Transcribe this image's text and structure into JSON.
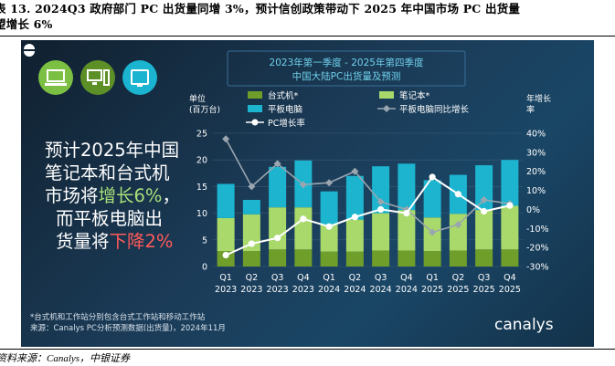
{
  "caption": {
    "line1": "表 13. 2024Q3 政府部门 PC 出货量同增 3%，预计信创政策带动下 2025 年中国市场 PC 出货量",
    "line2": "望增长 6%"
  },
  "source": "资料来源：Canalys，中银证券",
  "colors": {
    "desktop": "#6f9e2b",
    "notebook": "#a8d96a",
    "tablet": "#1cb4cf",
    "pc_growth_line": "#ffffff",
    "tablet_growth_line": "#9aa6b0",
    "highlight_green": "#a8e07a",
    "highlight_red": "#ff5a5a"
  },
  "icons": [
    "laptop-icon",
    "desktop-icon",
    "tablet-icon"
  ],
  "headline": {
    "line1": "预计2025年中国",
    "line2": "笔记本和台式机",
    "line3_pre": "市场将",
    "line3_hl": "增长6%",
    "line3_post": "，",
    "line4": "而平板电脑出",
    "line5_pre": "货量将",
    "line5_hl": "下降2%"
  },
  "footnote": {
    "line1": "*台式机和工作站分别包含台式工作站和移动工作站",
    "line2": "来源：Canalys PC分析预测数据(出货量)，2024年11月"
  },
  "brand": "canalys",
  "chart_data": {
    "type": "bar",
    "title": "2023年第一季度 - 2025年第四季度",
    "subtitle": "中国大陆PC出货量及预测",
    "ylabel_left": "单位 (百万台)",
    "ylabel_right": "年增长率",
    "categories": [
      "Q1 2023",
      "Q2 2023",
      "Q3 2023",
      "Q4 2023",
      "Q1 2024",
      "Q2 2024",
      "Q3 2024",
      "Q4 2024",
      "Q1 2025",
      "Q2 2025",
      "Q3 2025",
      "Q4 2025"
    ],
    "ylim_left": [
      0,
      25
    ],
    "yticks_left": [
      "0",
      "5",
      "10",
      "15",
      "20",
      "25"
    ],
    "ylim_right": [
      -30,
      40
    ],
    "yticks_right": [
      "-30%",
      "-20%",
      "-10%",
      "0%",
      "10%",
      "20%",
      "30%",
      "40%"
    ],
    "series": [
      {
        "name": "台式机*",
        "kind": "bar",
        "values": [
          2.9,
          2.9,
          3.2,
          3.2,
          2.8,
          2.8,
          3.0,
          3.0,
          2.9,
          3.0,
          3.2,
          3.2
        ]
      },
      {
        "name": "笔记本*",
        "kind": "bar",
        "values": [
          6.2,
          6.9,
          7.9,
          7.9,
          5.0,
          6.0,
          7.0,
          7.6,
          6.3,
          6.9,
          7.4,
          8.2
        ]
      },
      {
        "name": "平板电脑",
        "kind": "bar",
        "values": [
          6.4,
          2.7,
          7.6,
          8.8,
          6.3,
          8.2,
          8.8,
          8.7,
          7.0,
          7.3,
          8.4,
          8.6
        ]
      },
      {
        "name": "平板电脑同比增长",
        "kind": "line",
        "axis": "right",
        "values": [
          37,
          12,
          24,
          13,
          14,
          20,
          4,
          0,
          -12,
          -8,
          5,
          3
        ]
      },
      {
        "name": "PC增长率",
        "kind": "line",
        "axis": "right",
        "values": [
          -24,
          -18,
          -15,
          -5,
          -9,
          -4,
          0,
          -2,
          17,
          8,
          -1,
          2
        ]
      }
    ]
  }
}
